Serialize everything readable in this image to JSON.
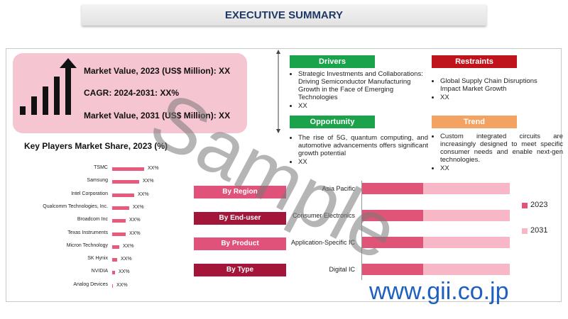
{
  "header": {
    "title": "EXECUTIVE SUMMARY"
  },
  "market": [
    "Market Value, 2023 (US$ Million): XX",
    "CAGR: 2024-2031: XX%",
    "Market Value, 2031 (US$ Million): XX"
  ],
  "panels": [
    {
      "title": "Drivers",
      "items": [
        "Strategic Investments and Collaborations: Driving Semiconductor Manufacturing Growth in the Face of Emerging Technologies",
        "XX"
      ]
    },
    {
      "title": "Restraints",
      "items": [
        "Global Supply Chain Disruptions Impact Market Growth",
        "XX"
      ]
    },
    {
      "title": "Opportunity",
      "items": [
        "The rise of 5G, quantum computing, and automotive advancements offers significant growth potential",
        "XX"
      ]
    },
    {
      "title": "Trend",
      "items": [
        "Custom integrated circuits are increasingly designed to meet specific consumer needs and enable next-gen technologies.",
        "XX"
      ]
    }
  ],
  "key_players": {
    "title": "Key Players Market Share, 2023 (%)",
    "names": [
      "TSMC",
      "Samsung",
      "Intel Corporation",
      "Qualcomm Technologies, Inc.",
      "Broadcom Inc",
      "Texas Instruments",
      "Micron Technology",
      "SK Hynix",
      "NVIDIA",
      "Analog Devices"
    ],
    "labels": [
      "XX%",
      "XX%",
      "XX%",
      "XX%",
      "XX%",
      "XX%",
      "XX%",
      "XX%",
      "XX%",
      "XX%"
    ]
  },
  "segments": [
    "By Region",
    "By End-user",
    "By Product",
    "By Type"
  ],
  "segment_chart": {
    "categories": [
      "Asia Pacific",
      "Consumer Electronics",
      "Application-Specific IC",
      "Digital IC"
    ],
    "legend": [
      "2023",
      "2031"
    ]
  },
  "watermark": "Sample",
  "site": "www.gii.co.jp"
}
